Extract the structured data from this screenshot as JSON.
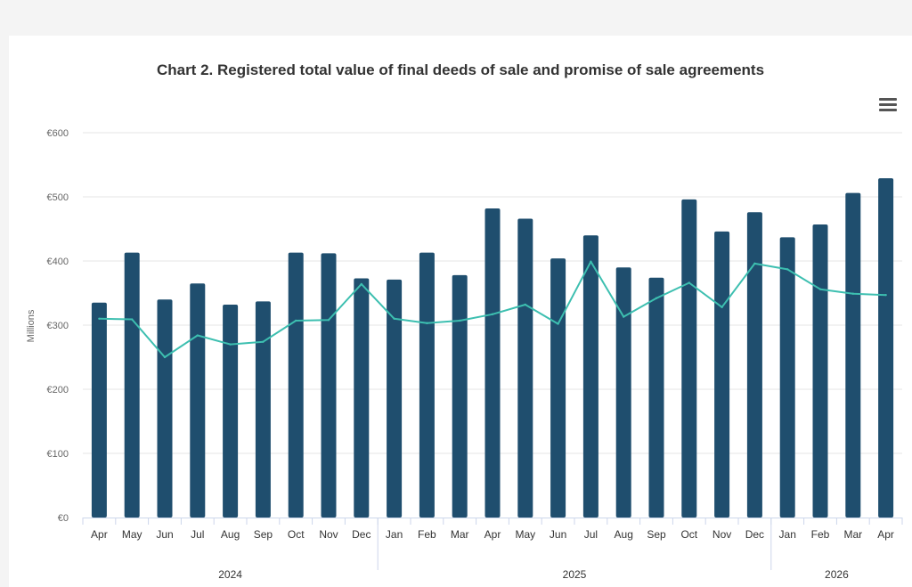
{
  "chart_data": {
    "type": "bar",
    "title": "Chart 2. Registered total value of final deeds of sale and promise of sale agreements",
    "ylabel": "Millions",
    "ylim": [
      0,
      600
    ],
    "yticks": [
      "€0",
      "€100",
      "€200",
      "€300",
      "€400",
      "€500",
      "€600"
    ],
    "categories": [
      "Apr",
      "May",
      "Jun",
      "Jul",
      "Aug",
      "Sep",
      "Oct",
      "Nov",
      "Dec",
      "Jan",
      "Feb",
      "Mar",
      "Apr",
      "May",
      "Jun",
      "Jul",
      "Aug",
      "Sep",
      "Oct",
      "Nov",
      "Dec",
      "Jan",
      "Feb",
      "Mar",
      "Apr"
    ],
    "year_groups": [
      {
        "label": "2024",
        "count": 9
      },
      {
        "label": "2025",
        "count": 12
      },
      {
        "label": "2026",
        "count": 4
      }
    ],
    "series": [
      {
        "type": "bar",
        "color": "#1f4e6e",
        "values": [
          335,
          413,
          340,
          365,
          332,
          337,
          413,
          412,
          373,
          371,
          413,
          378,
          482,
          466,
          404,
          440,
          390,
          374,
          496,
          446,
          476,
          437,
          457,
          506,
          529
        ]
      },
      {
        "type": "line",
        "color": "#3dbfb0",
        "values": [
          310,
          309,
          250,
          284,
          270,
          274,
          307,
          308,
          364,
          310,
          303,
          307,
          317,
          332,
          302,
          399,
          313,
          342,
          366,
          328,
          396,
          387,
          356,
          349,
          347
        ]
      }
    ],
    "grid": true,
    "legend": "none"
  },
  "ui": {
    "menu_icon": "hamburger-menu-icon"
  }
}
